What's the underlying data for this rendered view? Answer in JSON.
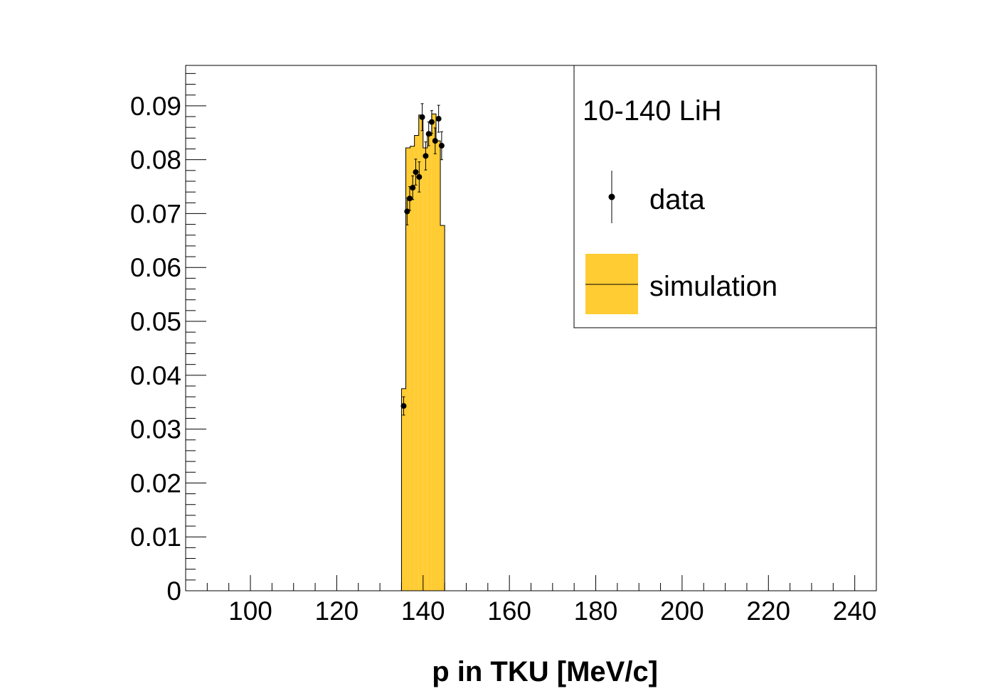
{
  "chart_data": {
    "type": "histogram",
    "xlabel": "p in TKU [MeV/c]",
    "ylabel": "",
    "xlim": [
      85,
      245
    ],
    "ylim": [
      0,
      0.0975
    ],
    "x_ticks": [
      100,
      120,
      140,
      160,
      180,
      200,
      220,
      240
    ],
    "x_tick_labels": [
      "100",
      "120",
      "140",
      "160",
      "180",
      "200",
      "220",
      "240"
    ],
    "y_ticks": [
      0,
      0.01,
      0.02,
      0.03,
      0.04,
      0.05,
      0.06,
      0.07,
      0.08,
      0.09
    ],
    "y_tick_labels": [
      "0",
      "0.01",
      "0.02",
      "0.03",
      "0.04",
      "0.05",
      "0.06",
      "0.07",
      "0.08",
      "0.09"
    ],
    "grid": false,
    "legend": {
      "placement": "top-right",
      "header": "10-140 LiH",
      "entries": [
        {
          "label": "data",
          "style": "marker-with-error-bar"
        },
        {
          "label": "simulation",
          "style": "filled-box"
        }
      ]
    },
    "simulation": {
      "color": "#ffcc33",
      "bin_edges": [
        135,
        136,
        137,
        138,
        139,
        140,
        141,
        142,
        143,
        144,
        145
      ],
      "values": [
        0.0375,
        0.0822,
        0.0825,
        0.0845,
        0.0883,
        0.0822,
        0.0845,
        0.0885,
        0.0835,
        0.0678
      ]
    },
    "data": {
      "x": [
        135.5,
        136.3,
        136.9,
        137.6,
        138.3,
        139.1,
        139.8,
        140.6,
        141.3,
        142.0,
        142.8,
        143.6,
        144.3
      ],
      "y": [
        0.0343,
        0.0704,
        0.0728,
        0.0748,
        0.0777,
        0.0768,
        0.0879,
        0.0807,
        0.0848,
        0.087,
        0.0835,
        0.0876,
        0.0826
      ],
      "err": [
        0.0017,
        0.0025,
        0.0022,
        0.0022,
        0.0024,
        0.0028,
        0.0025,
        0.0026,
        0.0022,
        0.0021,
        0.0024,
        0.0025,
        0.0026
      ]
    }
  }
}
